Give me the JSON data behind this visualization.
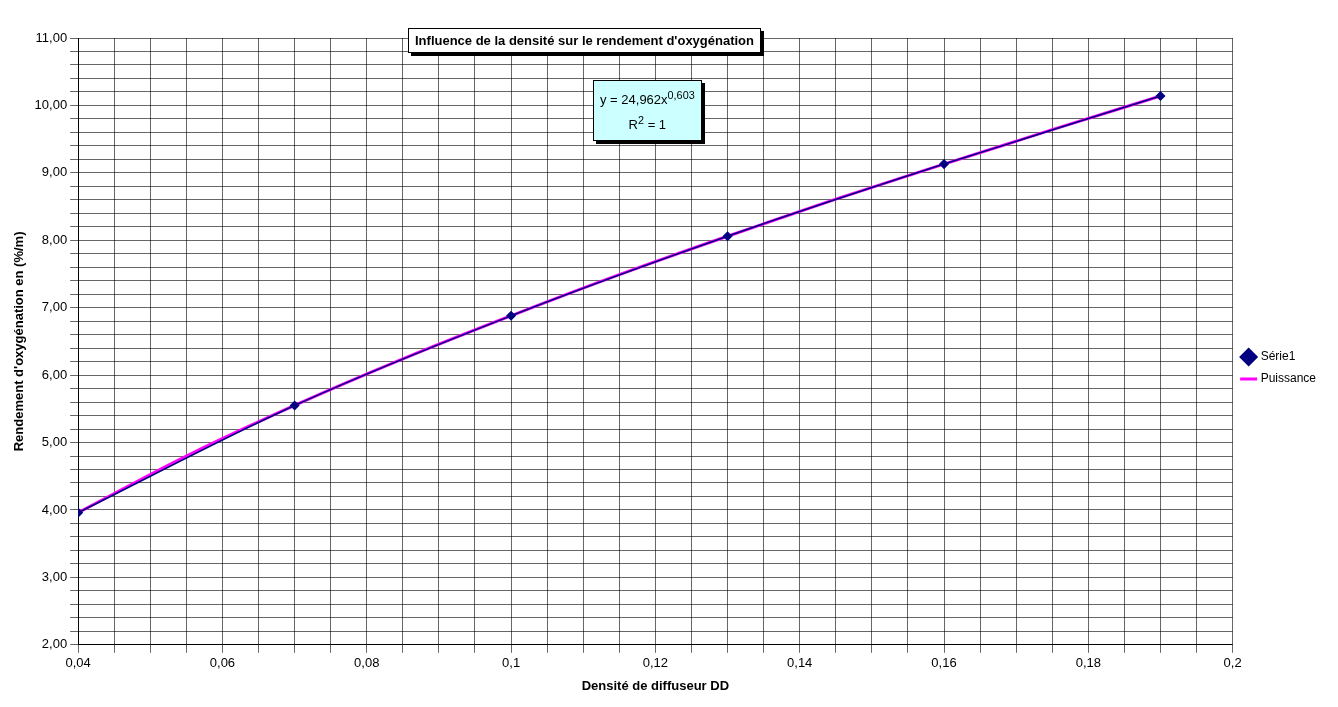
{
  "chart_data": {
    "type": "scatter",
    "title": "Influence de la densité sur le rendement d'oxygénation",
    "xlabel": "Densité de diffuseur DD",
    "ylabel": "Rendement d'oxygénation en (%/m)",
    "annotations": [
      "y = 24,962x$^{0,603}$",
      "R$^{2}$ = 1"
    ],
    "x": [
      0.04,
      0.07,
      0.1,
      0.13,
      0.16,
      0.19
    ],
    "series": [
      {
        "name": "Série1",
        "type": "line",
        "color": "#000080",
        "marker": "diamond",
        "values": [
          3.96,
          5.55,
          6.88,
          8.06,
          9.13,
          10.14
        ]
      },
      {
        "name": "Puissance",
        "type": "line",
        "color": "#ff00ff",
        "marker": "none",
        "x": [
          0.04,
          0.055,
          0.07,
          0.085,
          0.1,
          0.115,
          0.13,
          0.145,
          0.16,
          0.175,
          0.19
        ],
        "values": [
          3.96,
          4.8,
          5.55,
          6.24,
          6.88,
          7.49,
          8.06,
          8.61,
          9.13,
          9.64,
          10.14
        ]
      }
    ],
    "xlim": [
      0.04,
      0.2
    ],
    "xticks": [
      {
        "value": 0.04,
        "label": "0,04"
      },
      {
        "value": 0.045,
        "label": null
      },
      {
        "value": 0.05,
        "label": null
      },
      {
        "value": 0.055,
        "label": null
      },
      {
        "value": 0.06,
        "label": "0,06"
      },
      {
        "value": 0.065,
        "label": null
      },
      {
        "value": 0.07,
        "label": null
      },
      {
        "value": 0.075,
        "label": null
      },
      {
        "value": 0.08,
        "label": "0,08"
      },
      {
        "value": 0.085,
        "label": null
      },
      {
        "value": 0.09,
        "label": null
      },
      {
        "value": 0.095,
        "label": null
      },
      {
        "value": 0.1,
        "label": "0,1"
      },
      {
        "value": 0.105,
        "label": null
      },
      {
        "value": 0.11,
        "label": null
      },
      {
        "value": 0.115,
        "label": null
      },
      {
        "value": 0.12,
        "label": "0,12"
      },
      {
        "value": 0.125,
        "label": null
      },
      {
        "value": 0.13,
        "label": null
      },
      {
        "value": 0.135,
        "label": null
      },
      {
        "value": 0.14,
        "label": "0,14"
      },
      {
        "value": 0.145,
        "label": null
      },
      {
        "value": 0.15,
        "label": null
      },
      {
        "value": 0.155,
        "label": null
      },
      {
        "value": 0.16,
        "label": "0,16"
      },
      {
        "value": 0.165,
        "label": null
      },
      {
        "value": 0.17,
        "label": null
      },
      {
        "value": 0.175,
        "label": null
      },
      {
        "value": 0.18,
        "label": "0,18"
      },
      {
        "value": 0.185,
        "label": null
      },
      {
        "value": 0.19,
        "label": null
      },
      {
        "value": 0.195,
        "label": null
      },
      {
        "value": 0.2,
        "label": "0,2"
      }
    ],
    "ylim": [
      2,
      11
    ],
    "yticks": [
      {
        "value": 2,
        "label": "2,00"
      },
      {
        "value": 2.2,
        "label": null
      },
      {
        "value": 2.4,
        "label": null
      },
      {
        "value": 2.6,
        "label": null
      },
      {
        "value": 2.8,
        "label": null
      },
      {
        "value": 3,
        "label": "3,00"
      },
      {
        "value": 3.2,
        "label": null
      },
      {
        "value": 3.4,
        "label": null
      },
      {
        "value": 3.6,
        "label": null
      },
      {
        "value": 3.8,
        "label": null
      },
      {
        "value": 4,
        "label": "4,00"
      },
      {
        "value": 4.2,
        "label": null
      },
      {
        "value": 4.4,
        "label": null
      },
      {
        "value": 4.6,
        "label": null
      },
      {
        "value": 4.8,
        "label": null
      },
      {
        "value": 5,
        "label": "5,00"
      },
      {
        "value": 5.2,
        "label": null
      },
      {
        "value": 5.4,
        "label": null
      },
      {
        "value": 5.6,
        "label": null
      },
      {
        "value": 5.8,
        "label": null
      },
      {
        "value": 6,
        "label": "6,00"
      },
      {
        "value": 6.2,
        "label": null
      },
      {
        "value": 6.4,
        "label": null
      },
      {
        "value": 6.6,
        "label": null
      },
      {
        "value": 6.8,
        "label": null
      },
      {
        "value": 7,
        "label": "7,00"
      },
      {
        "value": 7.2,
        "label": null
      },
      {
        "value": 7.4,
        "label": null
      },
      {
        "value": 7.6,
        "label": null
      },
      {
        "value": 7.8,
        "label": null
      },
      {
        "value": 8,
        "label": "8,00"
      },
      {
        "value": 8.2,
        "label": null
      },
      {
        "value": 8.4,
        "label": null
      },
      {
        "value": 8.6,
        "label": null
      },
      {
        "value": 8.8,
        "label": null
      },
      {
        "value": 9,
        "label": "9,00"
      },
      {
        "value": 9.2,
        "label": null
      },
      {
        "value": 9.4,
        "label": null
      },
      {
        "value": 9.6,
        "label": null
      },
      {
        "value": 9.8,
        "label": null
      },
      {
        "value": 10,
        "label": "10,00"
      },
      {
        "value": 10.2,
        "label": null
      },
      {
        "value": 10.4,
        "label": null
      },
      {
        "value": 10.6,
        "label": null
      },
      {
        "value": 10.8,
        "label": null
      },
      {
        "value": 11,
        "label": "11,00"
      }
    ],
    "grid": true,
    "legend": "right"
  }
}
